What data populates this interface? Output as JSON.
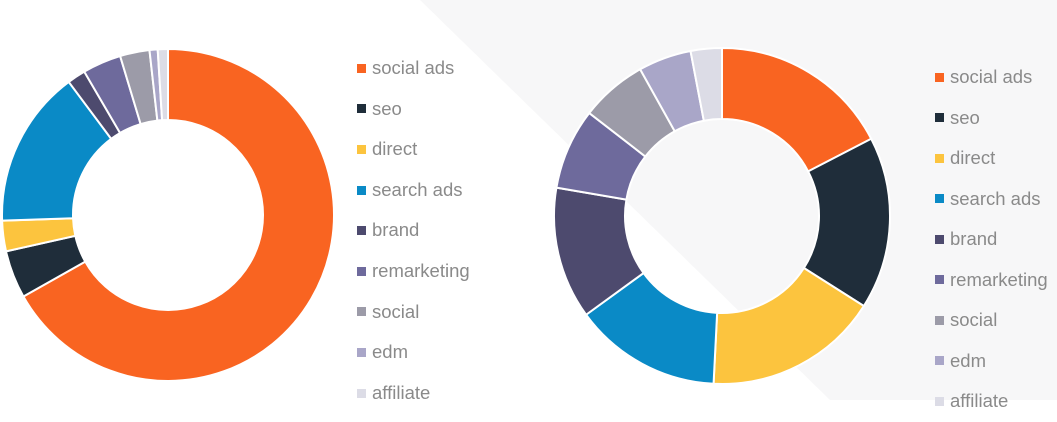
{
  "chart_data": [
    {
      "type": "pie",
      "donut": true,
      "title": "",
      "legend_position": "right",
      "categories": [
        "social ads",
        "seo",
        "direct",
        "search ads",
        "brand",
        "remarketing",
        "social",
        "edm",
        "affiliate"
      ],
      "values": [
        67.5,
        4.7,
        3.0,
        15.5,
        1.8,
        3.8,
        2.9,
        0.8,
        1.0
      ]
    },
    {
      "type": "pie",
      "donut": true,
      "title": "",
      "legend_position": "right",
      "categories": [
        "social ads",
        "seo",
        "direct",
        "search ads",
        "brand",
        "remarketing",
        "social",
        "edm",
        "affiliate"
      ],
      "values": [
        17.4,
        16.6,
        16.8,
        14.2,
        12.7,
        7.8,
        6.4,
        5.1,
        3.0
      ]
    }
  ],
  "colors": {
    "social ads": "#f96421",
    "seo": "#1f2d3a",
    "direct": "#fcc43e",
    "search ads": "#0a8ac6",
    "brand": "#4d4a6e",
    "remarketing": "#6e6a9c",
    "social": "#9c9ba8",
    "edm": "#a9a6c8",
    "affiliate": "#dcdce6"
  }
}
